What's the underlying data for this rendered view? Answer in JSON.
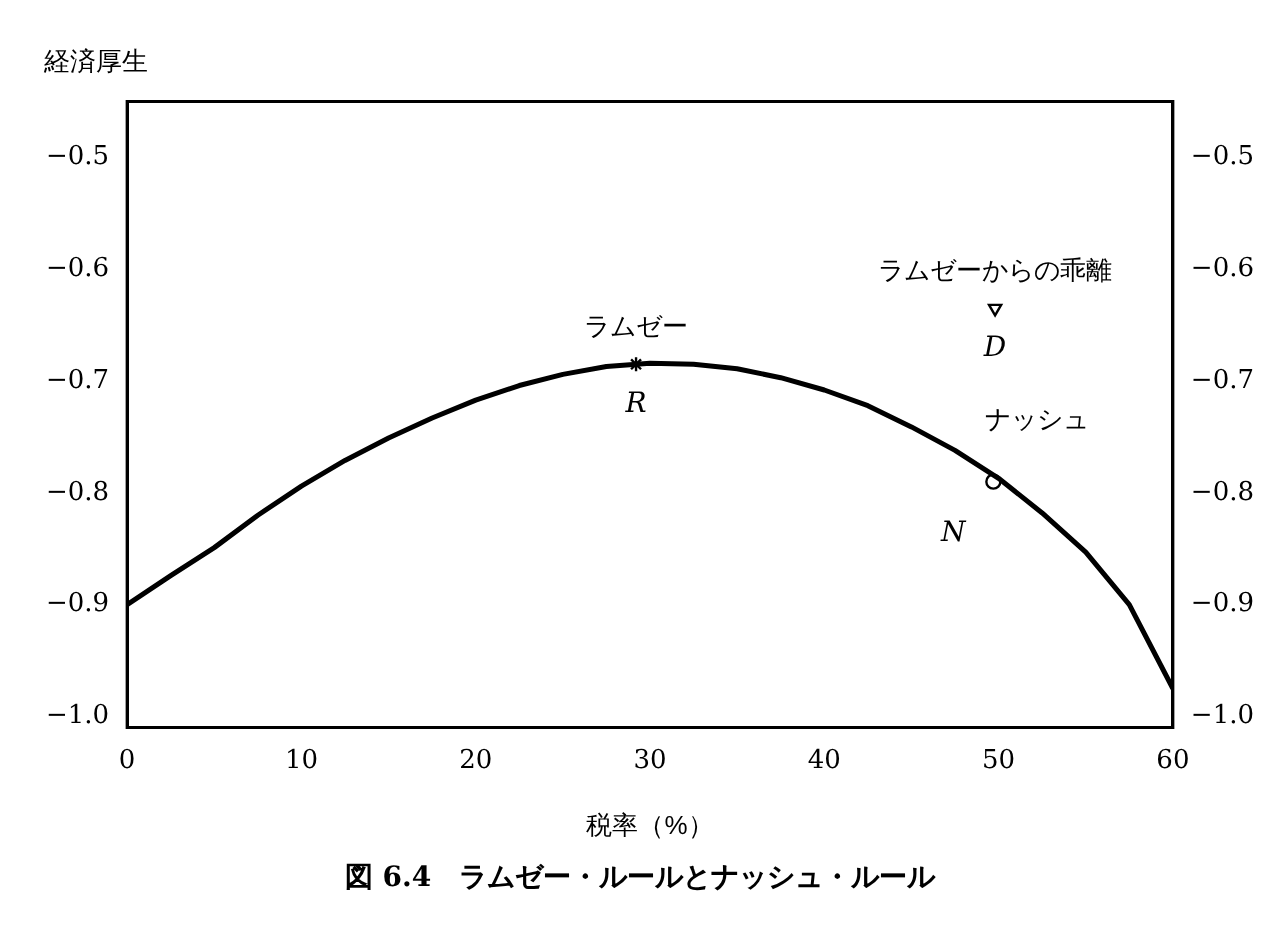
{
  "chart_data": {
    "type": "line",
    "title": "図 6.4　ラムゼー・ルールとナッシュ・ルール",
    "xlabel": "税率（%）",
    "ylabel": "経済厚生",
    "xlim": [
      0,
      60
    ],
    "xticks": [
      0,
      10,
      20,
      30,
      40,
      50,
      60
    ],
    "ylim": [
      -1.01,
      -0.45
    ],
    "yticks": [
      {
        "value": -1.0,
        "label": "−1.0"
      },
      {
        "value": -0.9,
        "label": "−0.9"
      },
      {
        "value": -0.8,
        "label": "−0.8"
      },
      {
        "value": -0.7,
        "label": "−0.7"
      },
      {
        "value": -0.6,
        "label": "−0.6"
      },
      {
        "value": -0.5,
        "label": "−0.5"
      }
    ],
    "y2lim": [
      -1.01,
      -0.45
    ],
    "y2ticks": [
      {
        "value": -1.0,
        "label": "−1.0"
      },
      {
        "value": -0.9,
        "label": "−0.9"
      },
      {
        "value": -0.8,
        "label": "−0.8"
      },
      {
        "value": -0.7,
        "label": "−0.7"
      },
      {
        "value": -0.6,
        "label": "−0.6"
      },
      {
        "value": -0.5,
        "label": "−0.5"
      }
    ],
    "grid": false,
    "legend": false,
    "line_style": "solid",
    "series": [
      {
        "color": "#000000",
        "marker": "none",
        "x": [
          0,
          2.5,
          5,
          7.5,
          10,
          12.5,
          15,
          17.5,
          20,
          22.5,
          25,
          27.5,
          30,
          32.5,
          35,
          37.5,
          40,
          42.5,
          45,
          47.5,
          50,
          52.5,
          55,
          57.5,
          60
        ],
        "values": [
          -0.9,
          -0.874,
          -0.849,
          -0.82,
          -0.794,
          -0.771,
          -0.751,
          -0.733,
          -0.717,
          -0.704,
          -0.694,
          -0.687,
          -0.684,
          -0.685,
          -0.689,
          -0.697,
          -0.708,
          -0.722,
          -0.741,
          -0.762,
          -0.787,
          -0.818,
          -0.853,
          -0.9,
          -0.975
        ]
      },
      {
        "type": "scatter",
        "name": "ラムゼー",
        "color": "#000000",
        "marker": "cross",
        "x": [
          29.2
        ],
        "values": [
          -0.685
        ]
      },
      {
        "type": "scatter",
        "name": "ナッシュ",
        "color": "#000000",
        "marker": "circle",
        "x": [
          49.7
        ],
        "values": [
          -0.79
        ]
      },
      {
        "type": "scatter",
        "name": "ラムゼーからの乖離",
        "color": "#000000",
        "marker": "triangle",
        "x": [
          49.8
        ],
        "values": [
          -0.635
        ]
      }
    ],
    "annotations": [
      {
        "text": "R",
        "x": 29.2,
        "y": -0.685
      },
      {
        "text": "N",
        "x": 49.7,
        "y": -0.79
      },
      {
        "text": "D",
        "x": 49.8,
        "y": -0.635
      }
    ]
  }
}
